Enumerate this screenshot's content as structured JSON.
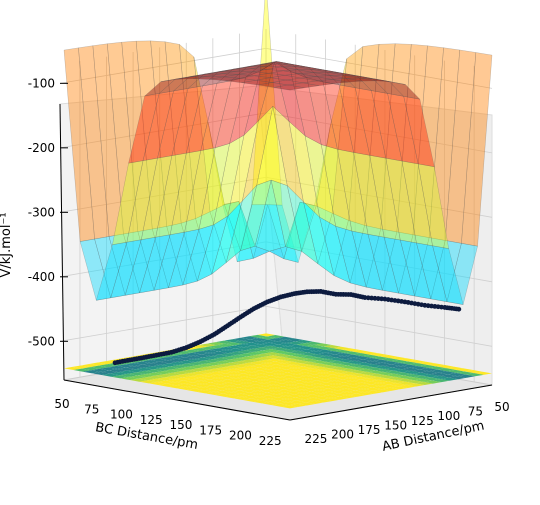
{
  "chart_data": {
    "type": "surface",
    "title": "",
    "zlabel": "V/kJ.mol⁻¹",
    "xlabel": "BC Distance/pm",
    "ylabel": "AB Distance/pm",
    "zlim": [
      -560,
      -70
    ],
    "xlim": [
      50,
      240
    ],
    "ylim": [
      50,
      240
    ],
    "z_ticks": [
      "-100",
      "-200",
      "-300",
      "-400",
      "-500"
    ],
    "x_ticks": [
      "50",
      "75",
      "100",
      "125",
      "150",
      "175",
      "200",
      "225"
    ],
    "y_ticks": [
      "50",
      "75",
      "100",
      "125",
      "150",
      "175",
      "200",
      "225"
    ],
    "grid": true,
    "surface_colormap": "jet (semi-transparent)",
    "contour_colormap": "viridis",
    "trajectory_series": [
      {
        "color": "#0d1b3f",
        "points": [
          [
            230,
            70,
            -440
          ],
          [
            220,
            72,
            -440
          ],
          [
            205,
            74,
            -441
          ],
          [
            190,
            76,
            -440
          ],
          [
            175,
            78,
            -440
          ],
          [
            160,
            80,
            -442
          ],
          [
            150,
            82,
            -440
          ],
          [
            140,
            85,
            -442
          ],
          [
            130,
            88,
            -440
          ],
          [
            122,
            92,
            -442
          ],
          [
            115,
            96,
            -446
          ],
          [
            108,
            101,
            -452
          ],
          [
            102,
            107,
            -460
          ],
          [
            97,
            114,
            -470
          ],
          [
            93,
            122,
            -482
          ],
          [
            90,
            131,
            -494
          ],
          [
            88,
            141,
            -505
          ],
          [
            86,
            152,
            -514
          ],
          [
            85,
            164,
            -520
          ],
          [
            84,
            177,
            -524
          ],
          [
            83,
            190,
            -525
          ],
          [
            82,
            203,
            -526
          ],
          [
            82,
            216,
            -526
          ],
          [
            81,
            229,
            -527
          ]
        ]
      }
    ]
  }
}
